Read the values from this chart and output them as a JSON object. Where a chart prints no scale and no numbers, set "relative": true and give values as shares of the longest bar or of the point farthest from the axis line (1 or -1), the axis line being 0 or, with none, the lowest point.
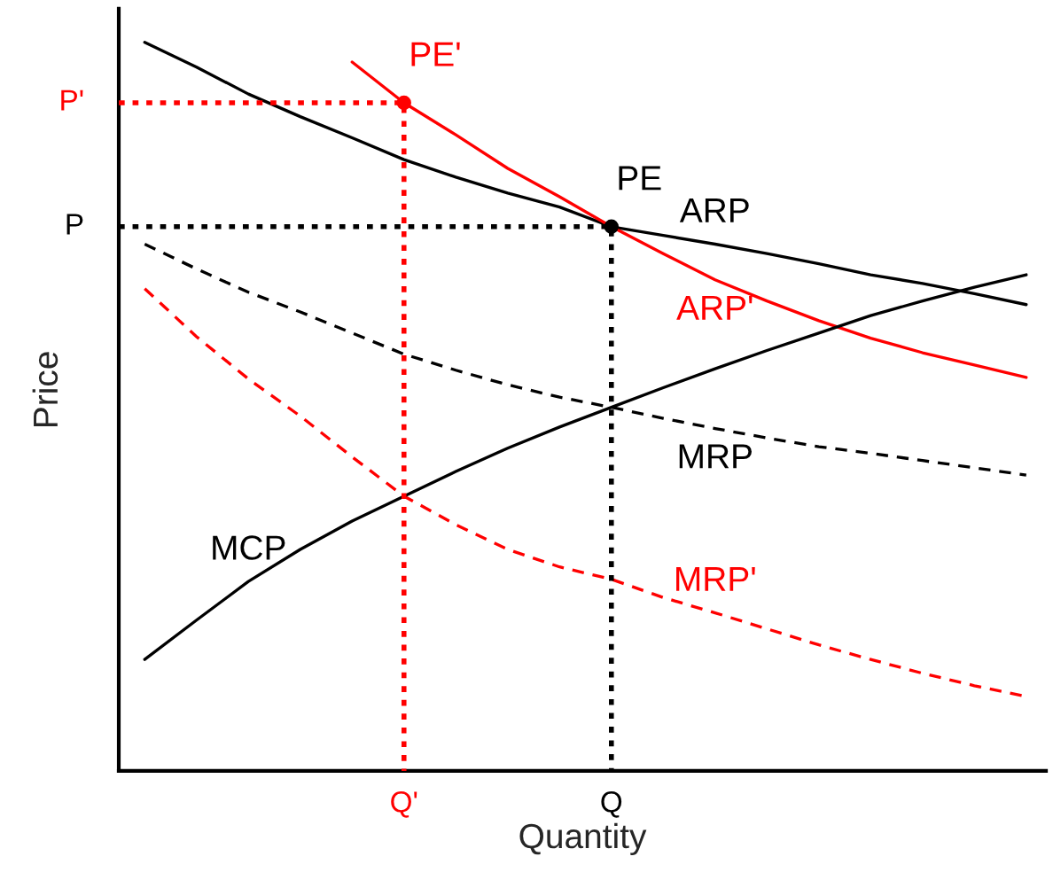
{
  "chart_data": {
    "type": "line",
    "relative": true,
    "xlabel": "Quantity",
    "ylabel": "Price",
    "grid": false,
    "legend": false,
    "categories": [
      null,
      null,
      null,
      null,
      null,
      "Q'",
      null,
      null,
      null,
      "Q",
      null,
      null,
      null,
      null,
      null,
      null,
      null,
      null
    ],
    "series": [
      {
        "name": "ARP",
        "color": "#000000",
        "line_style": "solid",
        "values": [
          1.0,
          0.966,
          0.929,
          0.898,
          0.869,
          0.839,
          0.815,
          0.793,
          0.774,
          0.747,
          0.735,
          0.723,
          0.71,
          0.696,
          0.681,
          0.669,
          0.655,
          0.64
        ]
      },
      {
        "name": "ARP'",
        "color": "#ff0000",
        "line_style": "solid",
        "values": [
          null,
          null,
          null,
          null,
          0.973,
          0.917,
          0.873,
          0.827,
          0.788,
          0.747,
          0.71,
          0.674,
          0.645,
          0.618,
          0.594,
          0.574,
          0.557,
          0.54
        ]
      },
      {
        "name": "MRP",
        "color": "#000000",
        "line_style": "dashed",
        "values": [
          0.723,
          0.689,
          0.657,
          0.63,
          0.601,
          0.572,
          0.55,
          0.53,
          0.513,
          0.499,
          0.484,
          0.47,
          0.457,
          0.445,
          0.436,
          0.426,
          0.416,
          0.406
        ]
      },
      {
        "name": "MRP'",
        "color": "#ff0000",
        "line_style": "dashed",
        "values": [
          0.662,
          0.596,
          0.538,
          0.487,
          0.431,
          0.377,
          0.338,
          0.304,
          0.28,
          0.263,
          0.238,
          0.217,
          0.195,
          0.173,
          0.153,
          0.134,
          0.117,
          0.102
        ]
      },
      {
        "name": "MCP",
        "color": "#000000",
        "line_style": "solid",
        "values": [
          0.153,
          0.207,
          0.26,
          0.304,
          0.343,
          0.377,
          0.411,
          0.443,
          0.472,
          0.499,
          0.526,
          0.552,
          0.577,
          0.601,
          0.625,
          0.645,
          0.664,
          0.681
        ]
      },
      {
        "name": "PE'",
        "type": "scatter",
        "marker": "circle",
        "line_style": "dotted",
        "color": "#ff0000",
        "values": [
          null,
          null,
          null,
          null,
          null,
          0.917,
          null,
          null,
          null,
          null,
          null,
          null,
          null,
          null,
          null,
          null,
          null,
          null
        ]
      },
      {
        "name": "PE",
        "type": "scatter",
        "marker": "circle",
        "line_style": "dotted",
        "color": "#000000",
        "values": [
          null,
          null,
          null,
          null,
          null,
          null,
          null,
          null,
          null,
          0.747,
          null,
          null,
          null,
          null,
          null,
          null,
          null,
          null
        ]
      }
    ],
    "annotations": [
      "P'",
      "P"
    ]
  }
}
